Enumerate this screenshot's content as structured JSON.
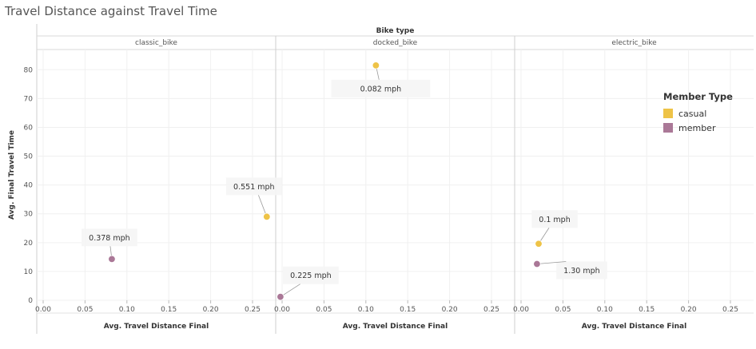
{
  "title": "Travel Distance against Travel Time",
  "colors": {
    "casual": "#EEC347",
    "member": "#AA7897"
  },
  "legend": {
    "title": "Member Type",
    "items": [
      {
        "label": "casual",
        "color": "#EEC347"
      },
      {
        "label": "member",
        "color": "#AA7897"
      }
    ]
  },
  "chart_data": {
    "type": "scatter",
    "column_header": "Bike type",
    "facets": [
      "classic_bike",
      "docked_bike",
      "electric_bike"
    ],
    "xlabel": "Avg. Travel Distance Final",
    "ylabel": "Avg. Final Travel Time",
    "xlim": [
      0,
      0.27
    ],
    "ylim": [
      0,
      87
    ],
    "x_ticks": [
      "0.00",
      "0.05",
      "0.10",
      "0.15",
      "0.20",
      "0.25"
    ],
    "y_ticks": [
      0,
      10,
      20,
      30,
      40,
      50,
      60,
      70,
      80
    ],
    "grid": true,
    "legend_position": "right",
    "points": [
      {
        "facet": "classic_bike",
        "member_type": "casual",
        "x": 0.267,
        "y": 29,
        "label": "0.551 mph"
      },
      {
        "facet": "classic_bike",
        "member_type": "member",
        "x": 0.082,
        "y": 14.3,
        "label": "0.378 mph"
      },
      {
        "facet": "docked_bike",
        "member_type": "casual",
        "x": 0.112,
        "y": 81.5,
        "label": "0.082 mph"
      },
      {
        "facet": "docked_bike",
        "member_type": "member",
        "x": -0.002,
        "y": 1.2,
        "label": "0.225 mph"
      },
      {
        "facet": "electric_bike",
        "member_type": "casual",
        "x": 0.021,
        "y": 19.6,
        "label": "0.1 mph"
      },
      {
        "facet": "electric_bike",
        "member_type": "member",
        "x": 0.019,
        "y": 12.6,
        "label": "1.30 mph"
      }
    ]
  }
}
